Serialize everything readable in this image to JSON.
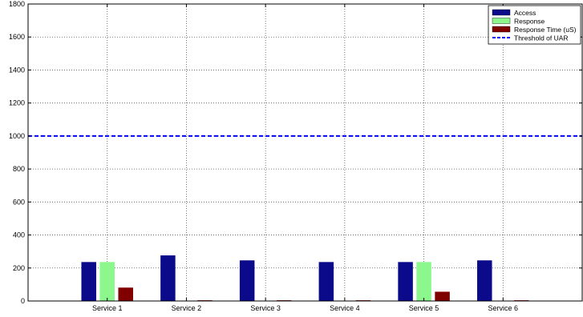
{
  "chart_data": {
    "type": "bar",
    "categories": [
      "Service 1",
      "Service 2",
      "Service 3",
      "Service 4",
      "Service 5",
      "Service 6"
    ],
    "series": [
      {
        "name": "Access",
        "color": "#0a0a8a",
        "values": [
          235,
          275,
          245,
          235,
          235,
          245
        ]
      },
      {
        "name": "Response",
        "color": "#8cf78c",
        "values": [
          235,
          0,
          0,
          0,
          235,
          0
        ]
      },
      {
        "name": "Response Time (uS)",
        "color": "#800000",
        "values": [
          80,
          3,
          3,
          3,
          55,
          3
        ]
      }
    ],
    "reference_line": {
      "name": "Threshold of UAR",
      "value": 1000,
      "color": "#0000ff",
      "style": "dashed"
    },
    "ylim": [
      0,
      1800
    ],
    "yticks": [
      0,
      200,
      400,
      600,
      800,
      1000,
      1200,
      1400,
      1600,
      1800
    ],
    "xlabel": "",
    "ylabel": "",
    "title": "",
    "grid": true,
    "legend_position": "top-right"
  }
}
